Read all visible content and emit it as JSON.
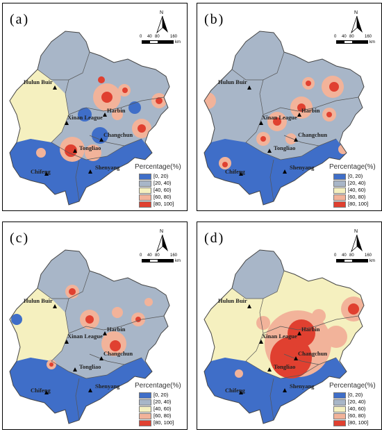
{
  "panels": [
    {
      "label": "(a)",
      "blobs": [
        {
          "c": "#f2b39a",
          "x": 150,
          "y": 135,
          "r": 20
        },
        {
          "c": "#e04030",
          "x": 150,
          "y": 135,
          "r": 8
        },
        {
          "c": "#f2b39a",
          "x": 200,
          "y": 180,
          "r": 14
        },
        {
          "c": "#e04030",
          "x": 200,
          "y": 180,
          "r": 6
        },
        {
          "c": "#f2b39a",
          "x": 100,
          "y": 210,
          "r": 18
        },
        {
          "c": "#e04030",
          "x": 98,
          "y": 212,
          "r": 9
        },
        {
          "c": "#f2b39a",
          "x": 130,
          "y": 215,
          "r": 12
        },
        {
          "c": "#3f6ec8",
          "x": 140,
          "y": 190,
          "r": 12
        },
        {
          "c": "#3f6ec8",
          "x": 118,
          "y": 160,
          "r": 10
        },
        {
          "c": "#f2b39a",
          "x": 225,
          "y": 140,
          "r": 11
        },
        {
          "c": "#e04030",
          "x": 225,
          "y": 140,
          "r": 5
        },
        {
          "c": "#f2b39a",
          "x": 175,
          "y": 125,
          "r": 9
        },
        {
          "c": "#e04030",
          "x": 176,
          "y": 125,
          "r": 4
        },
        {
          "c": "#3f6ec8",
          "x": 190,
          "y": 150,
          "r": 9
        },
        {
          "c": "#f2b39a",
          "x": 55,
          "y": 215,
          "r": 7
        },
        {
          "c": "#e04030",
          "x": 142,
          "y": 110,
          "r": 5
        },
        {
          "c": "#f2b39a",
          "x": 165,
          "y": 160,
          "r": 8
        }
      ]
    },
    {
      "label": "(b)",
      "blobs": [
        {
          "c": "#f2b39a",
          "x": 15,
          "y": 140,
          "r": 12
        },
        {
          "c": "#f2b39a",
          "x": 150,
          "y": 150,
          "r": 16
        },
        {
          "c": "#e04030",
          "x": 150,
          "y": 150,
          "r": 6
        },
        {
          "c": "#f2b39a",
          "x": 115,
          "y": 170,
          "r": 14
        },
        {
          "c": "#e04030",
          "x": 115,
          "y": 170,
          "r": 6
        },
        {
          "c": "#f2b39a",
          "x": 195,
          "y": 120,
          "r": 16
        },
        {
          "c": "#e04030",
          "x": 197,
          "y": 120,
          "r": 7
        },
        {
          "c": "#f2b39a",
          "x": 190,
          "y": 160,
          "r": 10
        },
        {
          "c": "#e04030",
          "x": 190,
          "y": 160,
          "r": 4
        },
        {
          "c": "#f2b39a",
          "x": 95,
          "y": 195,
          "r": 10
        },
        {
          "c": "#e04030",
          "x": 95,
          "y": 195,
          "r": 4
        },
        {
          "c": "#f2b39a",
          "x": 160,
          "y": 115,
          "r": 9
        },
        {
          "c": "#e04030",
          "x": 160,
          "y": 115,
          "r": 4
        },
        {
          "c": "#f2b39a",
          "x": 40,
          "y": 230,
          "r": 9
        },
        {
          "c": "#e04030",
          "x": 40,
          "y": 232,
          "r": 4
        },
        {
          "c": "#f2b39a",
          "x": 210,
          "y": 210,
          "r": 7
        },
        {
          "c": "#f2b39a",
          "x": 135,
          "y": 195,
          "r": 8
        }
      ]
    },
    {
      "label": "(c)",
      "blobs": [
        {
          "c": "#f2b39a",
          "x": 160,
          "y": 175,
          "r": 18
        },
        {
          "c": "#e04030",
          "x": 162,
          "y": 178,
          "r": 8
        },
        {
          "c": "#f2b39a",
          "x": 125,
          "y": 140,
          "r": 14
        },
        {
          "c": "#e04030",
          "x": 125,
          "y": 140,
          "r": 6
        },
        {
          "c": "#f2b39a",
          "x": 100,
          "y": 100,
          "r": 10
        },
        {
          "c": "#e04030",
          "x": 100,
          "y": 100,
          "r": 5
        },
        {
          "c": "#f2b39a",
          "x": 195,
          "y": 140,
          "r": 10
        },
        {
          "c": "#e04030",
          "x": 195,
          "y": 140,
          "r": 4
        },
        {
          "c": "#f2b39a",
          "x": 70,
          "y": 205,
          "r": 7
        },
        {
          "c": "#e04030",
          "x": 70,
          "y": 205,
          "r": 3
        },
        {
          "c": "#f2b39a",
          "x": 165,
          "y": 130,
          "r": 8
        },
        {
          "c": "#f2b39a",
          "x": 210,
          "y": 115,
          "r": 6
        },
        {
          "c": "#3f6ec8",
          "x": 20,
          "y": 140,
          "r": 8
        }
      ]
    },
    {
      "label": "(d)",
      "blobs": [
        {
          "c": "#f2b39a",
          "x": 145,
          "y": 175,
          "r": 48
        },
        {
          "c": "#e04030",
          "x": 135,
          "y": 195,
          "r": 30
        },
        {
          "c": "#e04030",
          "x": 150,
          "y": 160,
          "r": 20
        },
        {
          "c": "#f2b39a",
          "x": 200,
          "y": 165,
          "r": 16
        },
        {
          "c": "#f2b39a",
          "x": 225,
          "y": 125,
          "r": 18
        },
        {
          "c": "#e04030",
          "x": 225,
          "y": 125,
          "r": 8
        },
        {
          "c": "#f2b39a",
          "x": 95,
          "y": 145,
          "r": 10
        },
        {
          "c": "#f2b39a",
          "x": 175,
          "y": 135,
          "r": 10
        },
        {
          "c": "#f2b39a",
          "x": 60,
          "y": 218,
          "r": 6
        }
      ]
    }
  ],
  "cities": [
    {
      "name": "Hulun Buir",
      "x": 75,
      "y": 121,
      "tx": 30,
      "ty": 108
    },
    {
      "name": "Harbin",
      "x": 147,
      "y": 160,
      "tx": 150,
      "ty": 149
    },
    {
      "name": "Xinan League",
      "x": 92,
      "y": 172,
      "tx": 93,
      "ty": 159
    },
    {
      "name": "Changchun",
      "x": 142,
      "y": 196,
      "tx": 145,
      "ty": 184
    },
    {
      "name": "Tongliao",
      "x": 104,
      "y": 212,
      "tx": 110,
      "ty": 203
    },
    {
      "name": "Chifeng",
      "x": 63,
      "y": 245,
      "tx": 40,
      "ty": 237
    },
    {
      "name": "Shenyang",
      "x": 126,
      "y": 242,
      "tx": 133,
      "ty": 231
    }
  ],
  "legend": {
    "title": "Percentage(%)",
    "items": [
      {
        "label": "[0, 20)",
        "color": "#3f6ec8"
      },
      {
        "label": "[20, 40)",
        "color": "#a8b6c8"
      },
      {
        "label": "[40, 60)",
        "color": "#f5f0bf"
      },
      {
        "label": "[60, 80)",
        "color": "#f2b39a"
      },
      {
        "label": "[80, 100]",
        "color": "#e04030"
      }
    ]
  },
  "north_label": "N",
  "scale_labels": [
    "0",
    "40",
    "80",
    "160"
  ],
  "scale_unit": "km",
  "base_colors": {
    "north": "#a8b6c8",
    "west": "#f5f0bf",
    "central": "#a8b6c8",
    "south": "#3f6ec8",
    "d_central": "#f5f0bf"
  }
}
